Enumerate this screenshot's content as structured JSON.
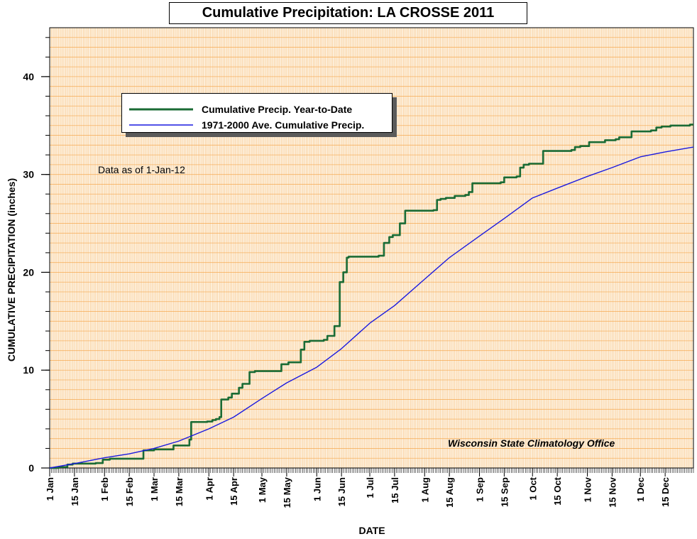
{
  "chart_data": {
    "type": "line",
    "title": "Cumulative Precipitation: LA CROSSE 2011",
    "xlabel": "DATE",
    "ylabel": "CUMULATIVE PRECIPITATION (inches)",
    "ylim": [
      0,
      45
    ],
    "xlim": [
      "2011-01-01",
      "2011-12-31"
    ],
    "yticks": [
      0,
      10,
      20,
      30,
      40
    ],
    "xtick_labels": [
      {
        "date": "2011-01-01",
        "label": "1 Jan"
      },
      {
        "date": "2011-01-15",
        "label": "15 Jan"
      },
      {
        "date": "2011-02-01",
        "label": "1 Feb"
      },
      {
        "date": "2011-02-15",
        "label": "15 Feb"
      },
      {
        "date": "2011-03-01",
        "label": "1 Mar"
      },
      {
        "date": "2011-03-15",
        "label": "15 Mar"
      },
      {
        "date": "2011-04-01",
        "label": "1 Apr"
      },
      {
        "date": "2011-04-15",
        "label": "15 Apr"
      },
      {
        "date": "2011-05-01",
        "label": "1 May"
      },
      {
        "date": "2011-05-15",
        "label": "15 May"
      },
      {
        "date": "2011-06-01",
        "label": "1 Jun"
      },
      {
        "date": "2011-06-15",
        "label": "15 Jun"
      },
      {
        "date": "2011-07-01",
        "label": "1 Jul"
      },
      {
        "date": "2011-07-15",
        "label": "15 Jul"
      },
      {
        "date": "2011-08-01",
        "label": "1 Aug"
      },
      {
        "date": "2011-08-15",
        "label": "15 Aug"
      },
      {
        "date": "2011-09-01",
        "label": "1 Sep"
      },
      {
        "date": "2011-09-15",
        "label": "15 Sep"
      },
      {
        "date": "2011-10-01",
        "label": "1 Oct"
      },
      {
        "date": "2011-10-15",
        "label": "15 Oct"
      },
      {
        "date": "2011-11-01",
        "label": "1 Nov"
      },
      {
        "date": "2011-11-15",
        "label": "15 Nov"
      },
      {
        "date": "2011-12-01",
        "label": "1 Dec"
      },
      {
        "date": "2011-12-15",
        "label": "15 Dec"
      }
    ],
    "grid": true,
    "legend_position": "top-left",
    "series": [
      {
        "name": "Cumulative Precip. Year-to-Date",
        "color": "#1a6b34",
        "step": true,
        "points": [
          [
            "2011-01-01",
            0.0
          ],
          [
            "2011-01-06",
            0.1
          ],
          [
            "2011-01-11",
            0.35
          ],
          [
            "2011-01-14",
            0.45
          ],
          [
            "2011-01-27",
            0.5
          ],
          [
            "2011-01-31",
            0.85
          ],
          [
            "2011-02-04",
            0.95
          ],
          [
            "2011-02-23",
            1.8
          ],
          [
            "2011-03-01",
            1.9
          ],
          [
            "2011-03-12",
            2.3
          ],
          [
            "2011-03-21",
            2.9
          ],
          [
            "2011-03-22",
            4.7
          ],
          [
            "2011-03-31",
            4.75
          ],
          [
            "2011-04-03",
            4.9
          ],
          [
            "2011-04-05",
            5.0
          ],
          [
            "2011-04-07",
            5.2
          ],
          [
            "2011-04-08",
            7.0
          ],
          [
            "2011-04-12",
            7.2
          ],
          [
            "2011-04-14",
            7.6
          ],
          [
            "2011-04-18",
            8.2
          ],
          [
            "2011-04-20",
            8.6
          ],
          [
            "2011-04-24",
            9.8
          ],
          [
            "2011-04-27",
            9.9
          ],
          [
            "2011-05-12",
            10.6
          ],
          [
            "2011-05-16",
            10.8
          ],
          [
            "2011-05-23",
            12.1
          ],
          [
            "2011-05-25",
            12.9
          ],
          [
            "2011-05-28",
            13.0
          ],
          [
            "2011-06-05",
            13.1
          ],
          [
            "2011-06-07",
            13.5
          ],
          [
            "2011-06-11",
            14.5
          ],
          [
            "2011-06-14",
            19.0
          ],
          [
            "2011-06-16",
            20.0
          ],
          [
            "2011-06-18",
            21.5
          ],
          [
            "2011-06-19",
            21.6
          ],
          [
            "2011-07-06",
            21.7
          ],
          [
            "2011-07-09",
            23.0
          ],
          [
            "2011-07-12",
            23.6
          ],
          [
            "2011-07-14",
            23.8
          ],
          [
            "2011-07-18",
            25.0
          ],
          [
            "2011-07-21",
            26.3
          ],
          [
            "2011-08-06",
            26.35
          ],
          [
            "2011-08-08",
            27.4
          ],
          [
            "2011-08-10",
            27.5
          ],
          [
            "2011-08-13",
            27.6
          ],
          [
            "2011-08-18",
            27.8
          ],
          [
            "2011-08-24",
            27.9
          ],
          [
            "2011-08-26",
            28.2
          ],
          [
            "2011-08-28",
            29.1
          ],
          [
            "2011-09-13",
            29.2
          ],
          [
            "2011-09-15",
            29.7
          ],
          [
            "2011-09-22",
            29.8
          ],
          [
            "2011-09-24",
            30.7
          ],
          [
            "2011-09-26",
            31.0
          ],
          [
            "2011-09-29",
            31.1
          ],
          [
            "2011-10-07",
            32.4
          ],
          [
            "2011-10-23",
            32.5
          ],
          [
            "2011-10-25",
            32.8
          ],
          [
            "2011-10-28",
            32.9
          ],
          [
            "2011-11-02",
            33.3
          ],
          [
            "2011-11-11",
            33.5
          ],
          [
            "2011-11-17",
            33.6
          ],
          [
            "2011-11-19",
            33.8
          ],
          [
            "2011-11-26",
            34.4
          ],
          [
            "2011-12-07",
            34.5
          ],
          [
            "2011-12-10",
            34.8
          ],
          [
            "2011-12-13",
            34.9
          ],
          [
            "2011-12-18",
            35.0
          ],
          [
            "2011-12-29",
            35.1
          ],
          [
            "2011-12-31",
            35.1
          ]
        ]
      },
      {
        "name": "1971-2000 Ave. Cumulative Precip.",
        "color": "#1a1ae0",
        "step": false,
        "points": [
          [
            "2011-01-01",
            0.0
          ],
          [
            "2011-01-15",
            0.45
          ],
          [
            "2011-02-01",
            1.05
          ],
          [
            "2011-02-15",
            1.45
          ],
          [
            "2011-03-01",
            2.0
          ],
          [
            "2011-03-15",
            2.75
          ],
          [
            "2011-04-01",
            4.0
          ],
          [
            "2011-04-15",
            5.2
          ],
          [
            "2011-05-01",
            7.1
          ],
          [
            "2011-05-15",
            8.7
          ],
          [
            "2011-06-01",
            10.3
          ],
          [
            "2011-06-15",
            12.2
          ],
          [
            "2011-07-01",
            14.8
          ],
          [
            "2011-07-15",
            16.6
          ],
          [
            "2011-08-01",
            19.3
          ],
          [
            "2011-08-15",
            21.5
          ],
          [
            "2011-09-01",
            23.7
          ],
          [
            "2011-09-15",
            25.5
          ],
          [
            "2011-10-01",
            27.6
          ],
          [
            "2011-10-15",
            28.6
          ],
          [
            "2011-11-01",
            29.8
          ],
          [
            "2011-11-15",
            30.7
          ],
          [
            "2011-12-01",
            31.8
          ],
          [
            "2011-12-15",
            32.3
          ],
          [
            "2011-12-31",
            32.8
          ]
        ]
      }
    ],
    "annotations": [
      "Data as of 1-Jan-12",
      "Wisconsin State Climatology Office"
    ],
    "background_color": "#fdf0dd",
    "grid_color": "#f5a54a"
  }
}
